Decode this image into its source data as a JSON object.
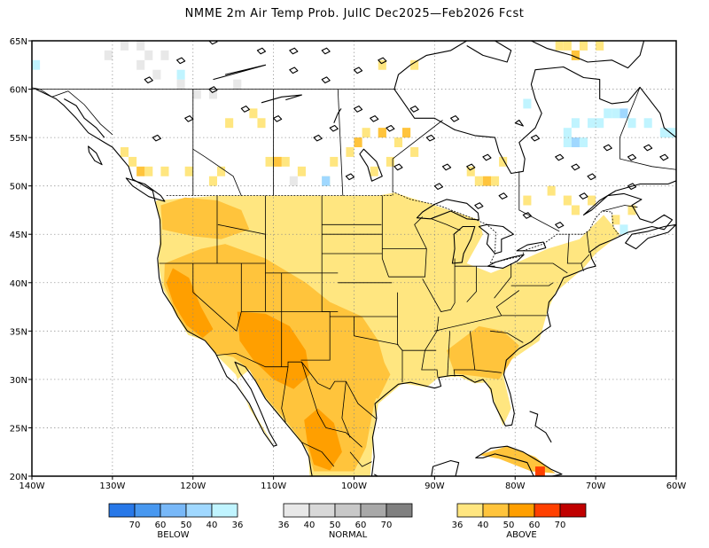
{
  "title": "NMME 2m Air Temp Prob. JulIC  Dec2025—Feb2026 Fcst",
  "map": {
    "region": "North America",
    "projection": "lat-lon",
    "lon_range": [
      -140,
      -60
    ],
    "lat_range": [
      20,
      65
    ],
    "lon_ticks": [
      {
        "value": -140,
        "label": "140W"
      },
      {
        "value": -130,
        "label": "130W"
      },
      {
        "value": -120,
        "label": "120W"
      },
      {
        "value": -110,
        "label": "110W"
      },
      {
        "value": -100,
        "label": "100W"
      },
      {
        "value": -90,
        "label": "90W"
      },
      {
        "value": -80,
        "label": "80W"
      },
      {
        "value": -70,
        "label": "70W"
      },
      {
        "value": -60,
        "label": "60W"
      }
    ],
    "lat_ticks": [
      {
        "value": 20,
        "label": "20N"
      },
      {
        "value": 25,
        "label": "25N"
      },
      {
        "value": 30,
        "label": "30N"
      },
      {
        "value": 35,
        "label": "35N"
      },
      {
        "value": 40,
        "label": "40N"
      },
      {
        "value": 45,
        "label": "45N"
      },
      {
        "value": 50,
        "label": "50N"
      },
      {
        "value": 55,
        "label": "55N"
      },
      {
        "value": 60,
        "label": "60N"
      },
      {
        "value": 65,
        "label": "65N"
      }
    ],
    "grid": "dotted",
    "colors": {
      "above_36": "#ffe680",
      "above_40": "#ffc43c",
      "above_50": "#ff9f00",
      "above_60": "#ff4000",
      "above_70": "#c00000",
      "normal_36": "#e8e8e8",
      "normal_40": "#d8d8d8",
      "normal_50": "#c8c8c8",
      "normal_60": "#a8a8a8",
      "normal_70": "#808080",
      "below_36": "#c0f4ff",
      "below_40": "#a0d8ff",
      "below_50": "#78b8f8",
      "below_60": "#4898f0",
      "below_70": "#2878e8"
    }
  },
  "legend": {
    "below": {
      "label": "BELOW",
      "ticks": [
        "70",
        "60",
        "50",
        "40",
        "36"
      ],
      "colors": [
        "#2878e8",
        "#4898f0",
        "#78b8f8",
        "#a0d8ff",
        "#c0f4ff"
      ]
    },
    "normal": {
      "label": "NORMAL",
      "ticks": [
        "36",
        "40",
        "50",
        "60",
        "70"
      ],
      "colors": [
        "#e8e8e8",
        "#d8d8d8",
        "#c8c8c8",
        "#a8a8a8",
        "#808080"
      ]
    },
    "above": {
      "label": "ABOVE",
      "ticks": [
        "36",
        "40",
        "50",
        "60",
        "70"
      ],
      "colors": [
        "#ffe680",
        "#ffc43c",
        "#ff9f00",
        "#ff4000",
        "#c00000"
      ]
    }
  }
}
